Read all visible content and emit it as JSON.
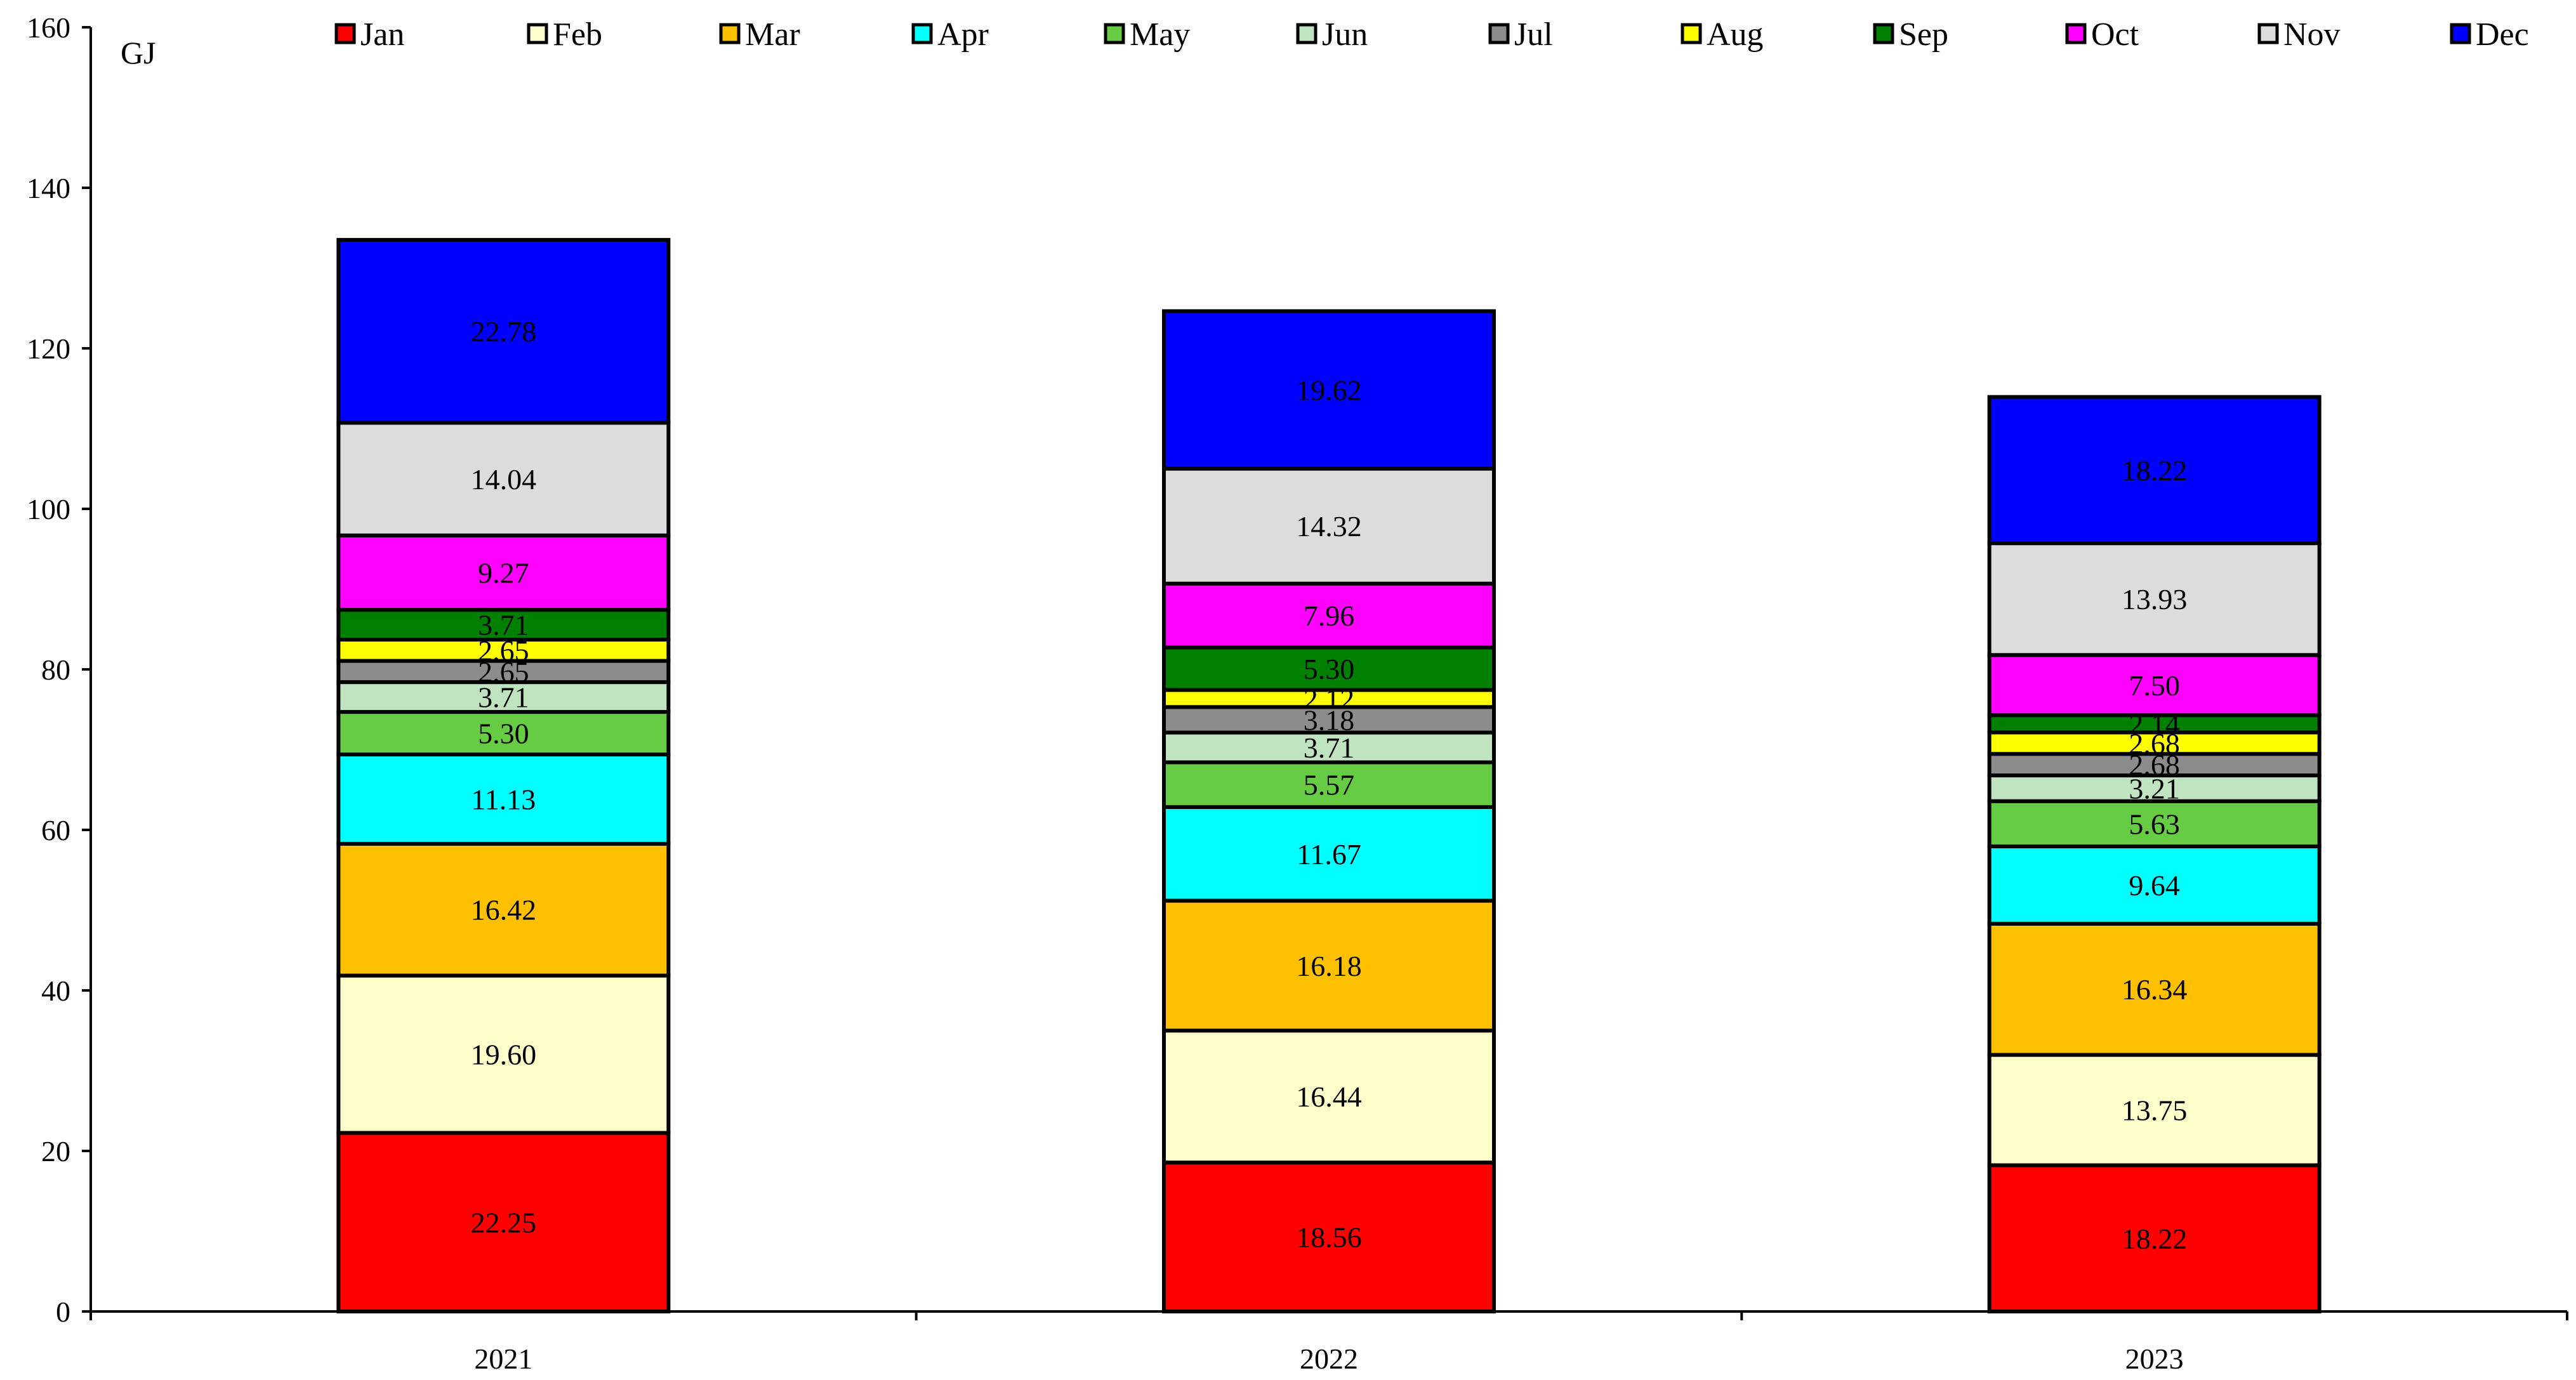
{
  "chart_data": {
    "type": "bar",
    "stacked": true,
    "unit_label": "GJ",
    "categories": [
      "2021",
      "2022",
      "2023"
    ],
    "ylim": [
      0,
      160
    ],
    "yticks": [
      0,
      20,
      40,
      60,
      80,
      100,
      120,
      140,
      160
    ],
    "legend_position": "top",
    "series": [
      {
        "name": "Jan",
        "color": "#ff0000",
        "values": [
          22.25,
          18.56,
          18.22
        ],
        "labels": [
          "22.25",
          "18.56",
          "18.22"
        ]
      },
      {
        "name": "Feb",
        "color": "#ffffcc",
        "values": [
          19.6,
          16.44,
          13.75
        ],
        "labels": [
          "19.60",
          "16.44",
          "13.75"
        ]
      },
      {
        "name": "Mar",
        "color": "#ffc000",
        "values": [
          16.42,
          16.18,
          16.34
        ],
        "labels": [
          "16.42",
          "16.18",
          "16.34"
        ]
      },
      {
        "name": "Apr",
        "color": "#00ffff",
        "values": [
          11.13,
          11.67,
          9.64
        ],
        "labels": [
          "11.13",
          "11.67",
          "9.64"
        ]
      },
      {
        "name": "May",
        "color": "#66cc44",
        "values": [
          5.3,
          5.57,
          5.63
        ],
        "labels": [
          "5.30",
          "5.57",
          "5.63"
        ]
      },
      {
        "name": "Jun",
        "color": "#c0e4c0",
        "values": [
          3.71,
          3.71,
          3.21
        ],
        "labels": [
          "3.71",
          "3.71",
          "3.21"
        ]
      },
      {
        "name": "Jul",
        "color": "#8c8c8c",
        "values": [
          2.65,
          3.18,
          2.68
        ],
        "labels": [
          "2.65",
          "3.18",
          "2.68"
        ]
      },
      {
        "name": "Aug",
        "color": "#ffff00",
        "values": [
          2.65,
          2.12,
          2.68
        ],
        "labels": [
          "2.65",
          "2.12",
          "2.68"
        ]
      },
      {
        "name": "Sep",
        "color": "#008000",
        "values": [
          3.71,
          5.3,
          2.14
        ],
        "labels": [
          "3.71",
          "5.30",
          "2.14"
        ]
      },
      {
        "name": "Oct",
        "color": "#ff00ff",
        "values": [
          9.27,
          7.96,
          7.5
        ],
        "labels": [
          "9.27",
          "7.96",
          "7.50"
        ]
      },
      {
        "name": "Nov",
        "color": "#dcdcdc",
        "values": [
          14.04,
          14.32,
          13.93
        ],
        "labels": [
          "14.04",
          "14.32",
          "13.93"
        ]
      },
      {
        "name": "Dec",
        "color": "#0000ff",
        "values": [
          22.78,
          19.62,
          18.22
        ],
        "labels": [
          "22.78",
          "19.62",
          "18.22"
        ]
      }
    ]
  }
}
